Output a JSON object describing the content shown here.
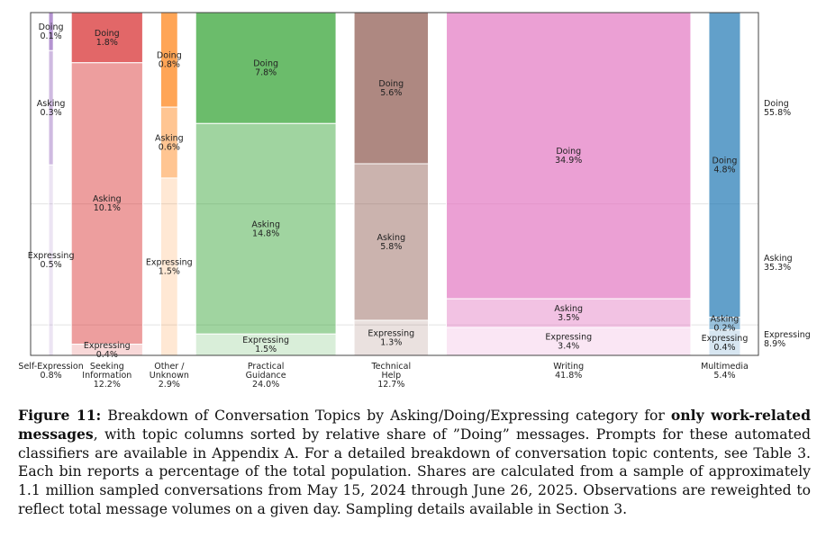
{
  "chart_data": {
    "type": "mosaic",
    "columns": [
      {
        "name": "Self-Expression",
        "share": "0.8%",
        "width": 0.8,
        "color": "#9467bd",
        "segments": [
          {
            "label": "Doing",
            "pct": "0.1%",
            "value": 0.1
          },
          {
            "label": "Asking",
            "pct": "0.3%",
            "value": 0.3
          },
          {
            "label": "Expressing",
            "pct": "0.5%",
            "value": 0.5
          }
        ]
      },
      {
        "name": "Seeking Information",
        "share": "12.2%",
        "width": 12.2,
        "color": "#d62728",
        "segments": [
          {
            "label": "Doing",
            "pct": "1.8%",
            "value": 1.8
          },
          {
            "label": "Asking",
            "pct": "10.1%",
            "value": 10.1
          },
          {
            "label": "Expressing",
            "pct": "0.4%",
            "value": 0.4
          }
        ]
      },
      {
        "name": "Other / Unknown",
        "share": "2.9%",
        "width": 2.9,
        "color": "#ff7f0e",
        "segments": [
          {
            "label": "Doing",
            "pct": "0.8%",
            "value": 0.8
          },
          {
            "label": "Asking",
            "pct": "0.6%",
            "value": 0.6
          },
          {
            "label": "Expressing",
            "pct": "1.5%",
            "value": 1.5
          }
        ]
      },
      {
        "name": "Practical Guidance",
        "share": "24.0%",
        "width": 24.0,
        "color": "#2ca02c",
        "segments": [
          {
            "label": "Doing",
            "pct": "7.8%",
            "value": 7.8
          },
          {
            "label": "Asking",
            "pct": "14.8%",
            "value": 14.8
          },
          {
            "label": "Expressing",
            "pct": "1.5%",
            "value": 1.5
          }
        ]
      },
      {
        "name": "Technical Help",
        "share": "12.7%",
        "width": 12.7,
        "color": "#8c564b",
        "segments": [
          {
            "label": "Doing",
            "pct": "5.6%",
            "value": 5.6
          },
          {
            "label": "Asking",
            "pct": "5.8%",
            "value": 5.8
          },
          {
            "label": "Expressing",
            "pct": "1.3%",
            "value": 1.3
          }
        ]
      },
      {
        "name": "Writing",
        "share": "41.8%",
        "width": 41.8,
        "color": "#e377c2",
        "segments": [
          {
            "label": "Doing",
            "pct": "34.9%",
            "value": 34.9
          },
          {
            "label": "Asking",
            "pct": "3.5%",
            "value": 3.5
          },
          {
            "label": "Expressing",
            "pct": "3.4%",
            "value": 3.4
          }
        ]
      },
      {
        "name": "Multimedia",
        "share": "5.4%",
        "width": 5.4,
        "color": "#1f77b4",
        "segments": [
          {
            "label": "Doing",
            "pct": "4.8%",
            "value": 4.8
          },
          {
            "label": "Asking",
            "pct": "0.2%",
            "value": 0.2
          },
          {
            "label": "Expressing",
            "pct": "0.4%",
            "value": 0.4
          }
        ]
      }
    ],
    "totals": [
      {
        "label": "Doing",
        "pct": "55.8%",
        "value": 55.8
      },
      {
        "label": "Asking",
        "pct": "35.3%",
        "value": 35.3
      },
      {
        "label": "Expressing",
        "pct": "8.9%",
        "value": 8.9
      }
    ],
    "segment_alpha": {
      "Doing": 0.7,
      "Asking": 0.45,
      "Expressing": 0.18
    },
    "border_color": "#444444",
    "grid_color": "#e2e2e2"
  },
  "caption": {
    "label": "Figure 11:",
    "text_a": " Breakdown of Conversation Topics by Asking/Doing/Expressing category for ",
    "bold_b": "only work-related messages",
    "text_c": ", with topic columns sorted by relative share of ”Doing” messages. Prompts for these automated classifiers are available in Appendix A. For a detailed breakdown of conversation topic contents, see Table 3. Each bin reports a percentage of the total population. Shares are calculated from a sample of approximately 1.1 million sampled conversations from May 15, 2024 through June 26, 2025. Observations are reweighted to reflect total message volumes on a given day. Sampling details available in Section 3."
  }
}
